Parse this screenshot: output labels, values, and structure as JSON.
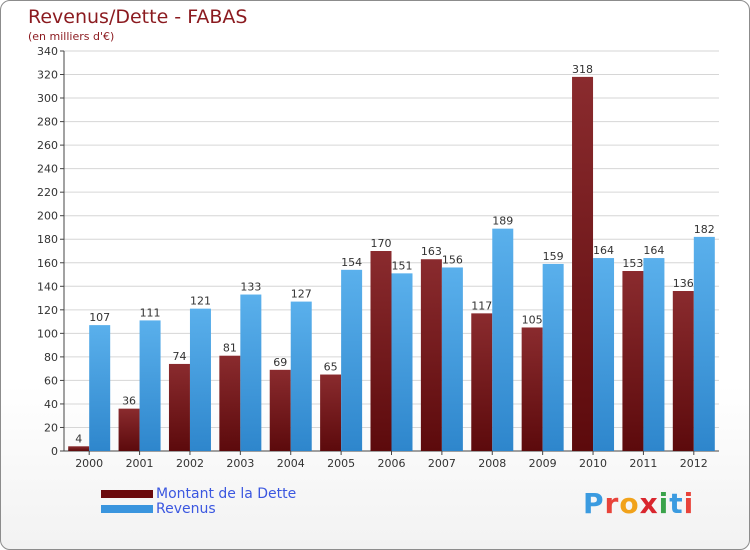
{
  "title": "Revenus/Dette - FABAS",
  "subtitle": "(en milliers d'€)",
  "chart_data": {
    "type": "bar",
    "categories": [
      "2000",
      "2001",
      "2002",
      "2003",
      "2004",
      "2005",
      "2006",
      "2007",
      "2008",
      "2009",
      "2010",
      "2011",
      "2012"
    ],
    "series": [
      {
        "name": "Montant de la Dette",
        "values": [
          4,
          36,
          74,
          81,
          69,
          65,
          170,
          163,
          117,
          105,
          318,
          153,
          136
        ],
        "color": "#7a1c1f"
      },
      {
        "name": "Revenus",
        "values": [
          107,
          111,
          121,
          133,
          127,
          154,
          151,
          156,
          189,
          159,
          164,
          164,
          182
        ],
        "color": "#3a95de"
      }
    ],
    "ylim": [
      0,
      340
    ],
    "yticks": [
      0,
      20,
      40,
      60,
      80,
      100,
      120,
      140,
      160,
      180,
      200,
      220,
      240,
      260,
      280,
      300,
      320,
      340
    ],
    "grid": true,
    "legend": "bottom-left"
  },
  "legend": {
    "items": [
      {
        "label": "Montant de la Dette",
        "color": "#6b0a0d"
      },
      {
        "label": "Revenus",
        "color": "#3a95de"
      }
    ]
  },
  "logo": {
    "letters": [
      {
        "ch": "P",
        "color": "#3b9be0"
      },
      {
        "ch": "r",
        "color": "#e8433a"
      },
      {
        "ch": "o",
        "color": "#f1a21a"
      },
      {
        "ch": "x",
        "color": "#d9262e"
      },
      {
        "ch": "i",
        "color": "#3aa34a"
      },
      {
        "ch": "t",
        "color": "#3b9be0"
      },
      {
        "ch": "i",
        "color": "#e8433a"
      }
    ]
  }
}
